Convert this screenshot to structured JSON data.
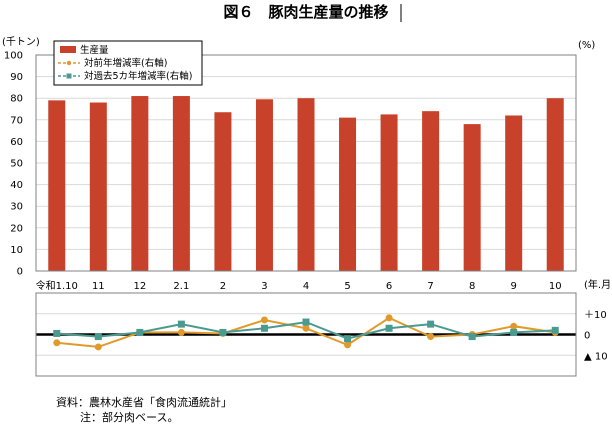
{
  "title": "図６　豚肉生産量の推移",
  "notes": {
    "source": "資料：農林水産省「食肉流通統計」",
    "note": "注：部分肉ベース。"
  },
  "colors": {
    "bar": "#c8412a",
    "yoy": "#e09a2c",
    "vs5y": "#4b9a90",
    "zero_line": "#000000",
    "grid": "#d9d9d9"
  },
  "chart_data": [
    {
      "type": "bar",
      "unit_label": "(千トン)",
      "categories": [
        "令和1.10",
        "11",
        "12",
        "2.1",
        "2",
        "3",
        "4",
        "5",
        "6",
        "7",
        "8",
        "9",
        "10"
      ],
      "x_unit_label": "(年.月)",
      "ylim": [
        0,
        100
      ],
      "yticks": [
        0,
        10,
        20,
        30,
        40,
        50,
        60,
        70,
        80,
        90,
        100
      ],
      "grid": true,
      "series": [
        {
          "name": "生産量",
          "values": [
            79,
            78,
            81,
            81,
            73.5,
            79.5,
            80,
            71,
            72.5,
            74,
            68,
            72,
            80
          ]
        }
      ],
      "legend_position": "top-left"
    },
    {
      "type": "line",
      "right_unit_label": "(%)",
      "categories": [
        "令和1.10",
        "11",
        "12",
        "2.1",
        "2",
        "3",
        "4",
        "5",
        "6",
        "7",
        "8",
        "9",
        "10"
      ],
      "ylim": [
        -20,
        20
      ],
      "yticks": [
        {
          "value": 10,
          "label": "＋10"
        },
        {
          "value": 0,
          "label": "0"
        },
        {
          "value": -10,
          "label": "▲ 10"
        }
      ],
      "series": [
        {
          "name": "対前年増減率(右軸)",
          "values": [
            -4,
            -6,
            1,
            1,
            0.5,
            7,
            3,
            -5,
            8,
            -1,
            0,
            4,
            1
          ]
        },
        {
          "name": "対過去5カ年増減率(右軸)",
          "values": [
            0.5,
            -1,
            1,
            5,
            1,
            3,
            6,
            -2,
            3,
            5,
            -1,
            1,
            2
          ]
        }
      ]
    }
  ]
}
